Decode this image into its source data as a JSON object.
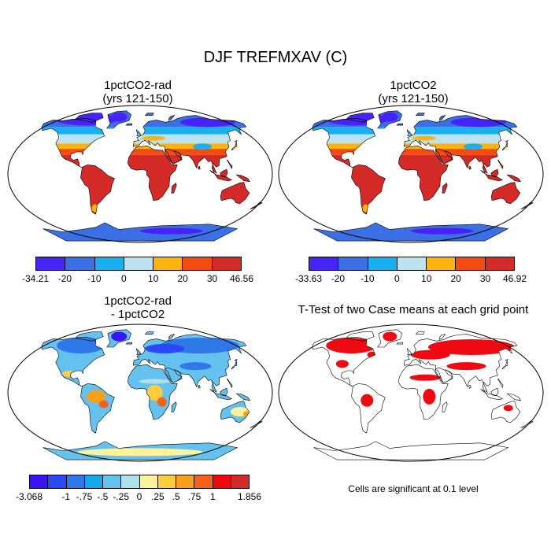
{
  "title": "DJF TREFMXAV (C)",
  "panels": {
    "top_left": {
      "title_line1": "1pctCO2-rad",
      "title_line2": "(yrs 121-150)"
    },
    "top_right": {
      "title_line1": "1pctCO2",
      "title_line2": "(yrs 121-150)"
    },
    "bottom_left": {
      "title_line1": "1pctCO2-rad",
      "title_line2": "- 1pctCO2"
    },
    "bottom_right": {
      "title_line1": "T-Test of two Case means at each grid point"
    }
  },
  "colorbars": {
    "top_left": {
      "labels": [
        "-34.21",
        "-20",
        "-10",
        "0",
        "10",
        "20",
        "30",
        "46.56"
      ],
      "colors": [
        "#4623f7",
        "#3a6fe6",
        "#1ab0f0",
        "#bde3f2",
        "#fbb40f",
        "#f54a11",
        "#d42a28"
      ]
    },
    "top_right": {
      "labels": [
        "-33.63",
        "-20",
        "-10",
        "0",
        "10",
        "20",
        "30",
        "46.92"
      ],
      "colors": [
        "#4623f7",
        "#3a6fe6",
        "#1ab0f0",
        "#bde3f2",
        "#fbb40f",
        "#f54a11",
        "#d42a28"
      ]
    },
    "bottom_left": {
      "labels": [
        "-3.068",
        "-1",
        "-.75",
        "-.5",
        "-.25",
        "0",
        ".25",
        ".5",
        ".75",
        "1",
        "1.856"
      ],
      "colors": [
        "#3a14f5",
        "#2a48f4",
        "#2e78ea",
        "#16a6ee",
        "#65c2ee",
        "#aee0ee",
        "#fef39a",
        "#fecc3c",
        "#fca01c",
        "#f7601a",
        "#ee0a10",
        "#d12a2a"
      ]
    }
  },
  "significance_note": "Cells are significant at 0.1 level",
  "colors": {
    "land_warm": "#d42a28",
    "land_hot_edge": "#f54a11",
    "land_mid": "#fbb40f",
    "land_cool": "#bde3f2",
    "land_cold": "#1ab0f0",
    "land_colder": "#3a6fe6",
    "land_coldest": "#4623f7",
    "diff_base": "#65c2ee",
    "diff_neg": "#2e78ea",
    "diff_pos": "#fecc3c",
    "sig": "#ee0a10"
  }
}
